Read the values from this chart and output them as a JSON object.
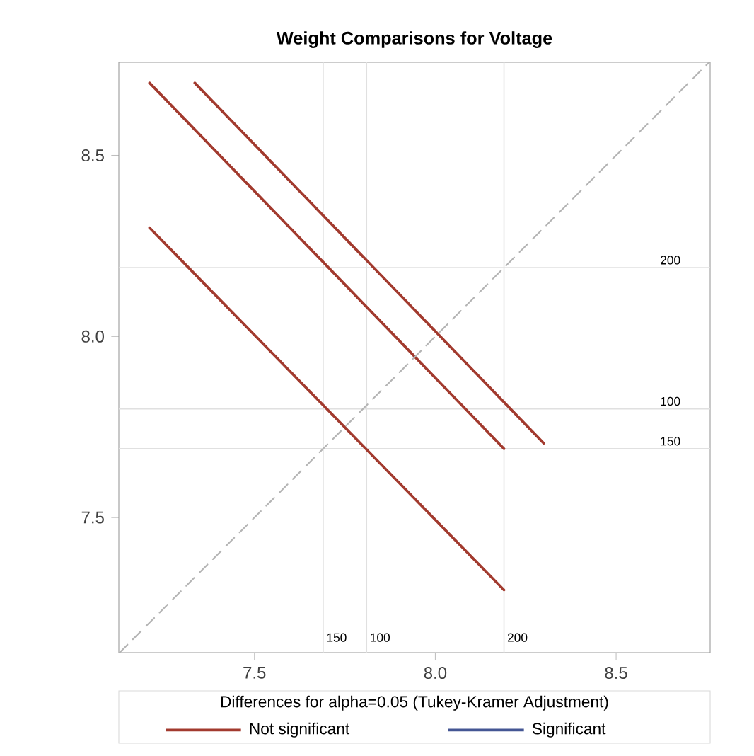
{
  "chart_data": {
    "type": "line",
    "title": "Weight Comparisons for Voltage",
    "legend_title": "Differences for alpha=0.05 (Tukey-Kramer Adjustment)",
    "legend": "bottom",
    "xlim": [
      7.125,
      8.76
    ],
    "ylim": [
      7.127,
      8.757
    ],
    "xticks": [
      7.5,
      {
        "value": 8,
        "label": "8.0"
      },
      8.5
    ],
    "yticks": [
      7.5,
      {
        "value": 8,
        "label": "8.0"
      },
      8.5
    ],
    "series": [
      {
        "name": "Not significant",
        "color": "#a23a2e",
        "x": [
          7.21,
          8.19
        ],
        "values": [
          8.7,
          7.69
        ]
      },
      {
        "color": "#a23a2e",
        "x": [
          7.21,
          8.19
        ],
        "values": [
          8.3,
          7.3
        ]
      },
      {
        "color": "#a23a2e",
        "x": [
          7.335,
          8.3
        ],
        "values": [
          8.7,
          7.705
        ]
      },
      {
        "name": "Significant",
        "color": "#445694"
      },
      {
        "color": "#b4b4b4",
        "line_style": "dashed",
        "x": [
          7.127,
          8.757
        ],
        "values": [
          7.127,
          8.757
        ]
      }
    ],
    "ref_lines": [
      {
        "axis": "x",
        "value": 7.69
      },
      {
        "axis": "x",
        "value": 7.81
      },
      {
        "axis": "x",
        "value": 8.19
      },
      {
        "axis": "y",
        "value": 8.19
      },
      {
        "axis": "y",
        "value": 7.8
      },
      {
        "axis": "y",
        "value": 7.69
      }
    ],
    "annotations": [
      {
        "text": "150",
        "x": 7.69
      },
      {
        "text": "100",
        "x": 7.81
      },
      {
        "text": "200",
        "x": 8.19
      },
      {
        "text": "200",
        "y": 8.19
      },
      {
        "text": "100",
        "y": 7.8
      },
      {
        "text": "150",
        "y": 7.69
      }
    ]
  }
}
